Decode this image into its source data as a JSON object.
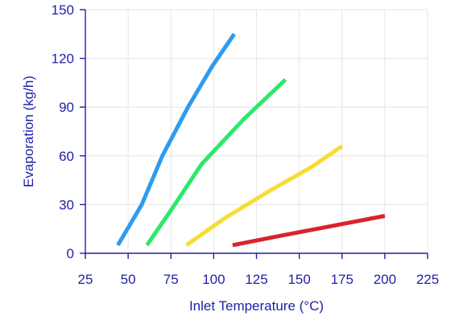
{
  "chart_data": {
    "type": "line",
    "xlabel": "Inlet Temperature (°C)",
    "ylabel": "Evaporation (kg/h)",
    "xlim": [
      25,
      225
    ],
    "ylim": [
      0,
      150
    ],
    "x_ticks": [
      25,
      50,
      75,
      100,
      125,
      150,
      175,
      200,
      225
    ],
    "y_ticks": [
      0,
      30,
      60,
      90,
      120,
      150
    ],
    "grid": true,
    "series": [
      {
        "color": "#2e9bf0",
        "points": [
          [
            44,
            5
          ],
          [
            58,
            30
          ],
          [
            70,
            60
          ],
          [
            85,
            90
          ],
          [
            99,
            115
          ],
          [
            112,
            135
          ]
        ]
      },
      {
        "color": "#2ee86a",
        "points": [
          [
            61,
            5
          ],
          [
            76,
            28
          ],
          [
            93,
            55
          ],
          [
            118,
            83
          ],
          [
            142,
            107
          ]
        ]
      },
      {
        "color": "#f7dc35",
        "points": [
          [
            84,
            5
          ],
          [
            107,
            22
          ],
          [
            132,
            38
          ],
          [
            157,
            53
          ],
          [
            175,
            66
          ]
        ]
      },
      {
        "color": "#d9232e",
        "points": [
          [
            111,
            5
          ],
          [
            140,
            11
          ],
          [
            170,
            17
          ],
          [
            200,
            23
          ]
        ]
      }
    ]
  }
}
